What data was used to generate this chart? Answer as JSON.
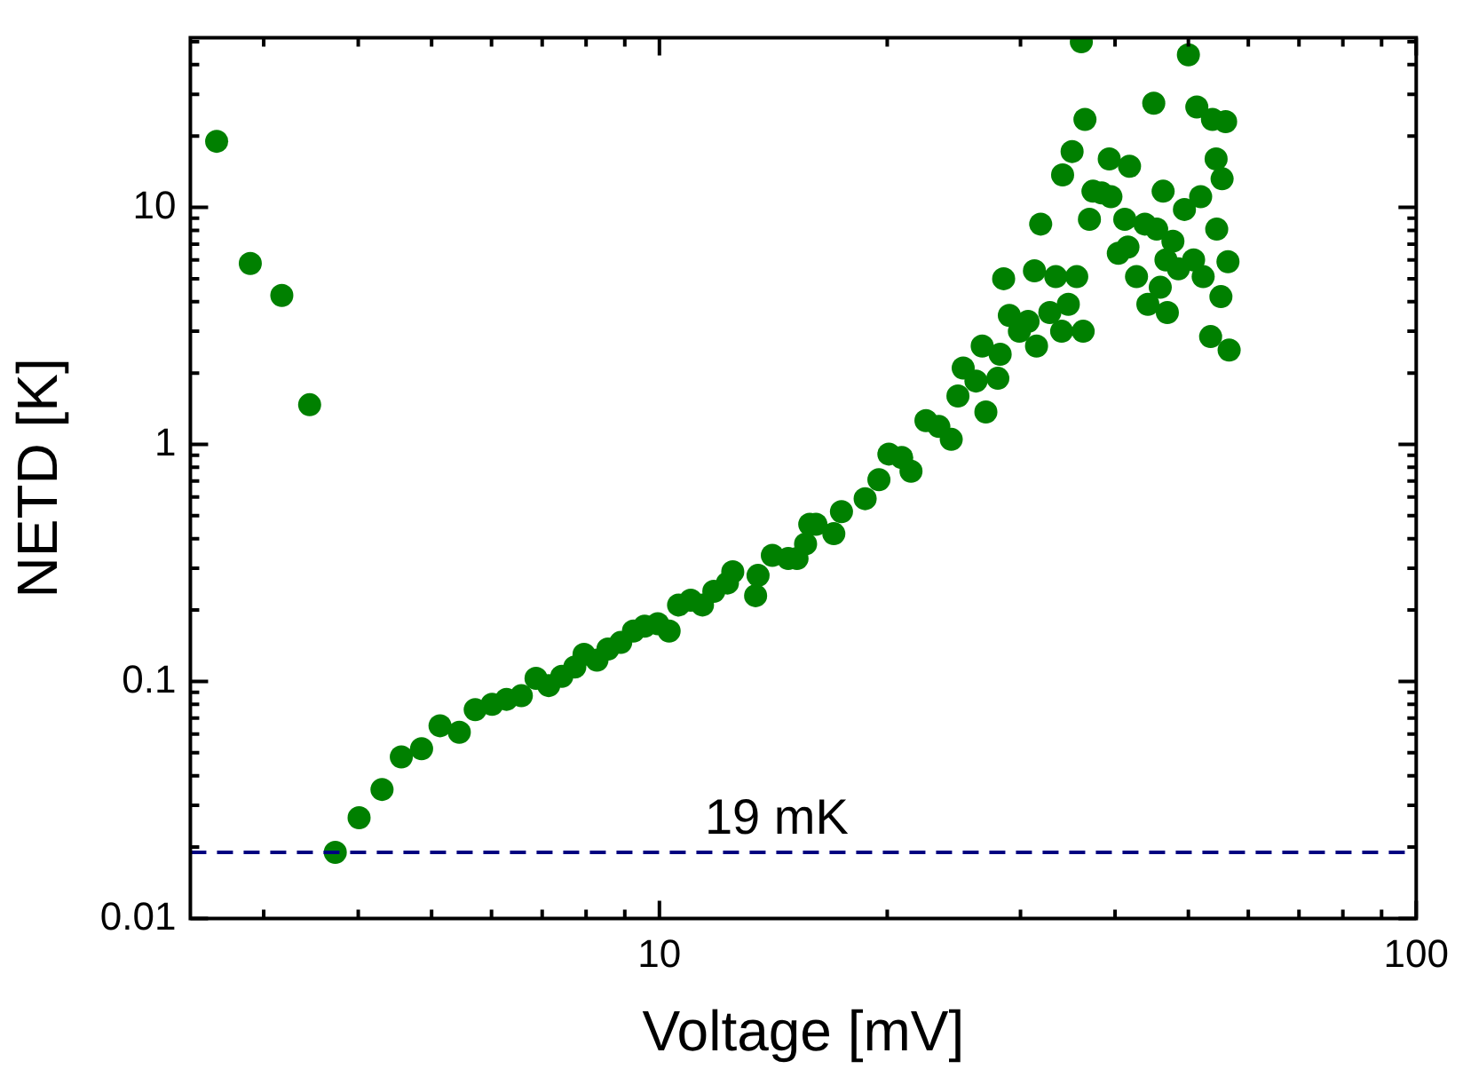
{
  "chart_data": {
    "type": "scatter",
    "xlabel": "Voltage [mV]",
    "ylabel": "NETD [K]",
    "log": "xy",
    "grid": false,
    "legend": false,
    "marker": "circle",
    "xlim": [
      2.4,
      100
    ],
    "ylim": [
      0.01,
      52
    ],
    "xticks": [
      {
        "value": 3,
        "label": null
      },
      {
        "value": 4,
        "label": null
      },
      {
        "value": 5,
        "label": null
      },
      {
        "value": 6,
        "label": null
      },
      {
        "value": 7,
        "label": null
      },
      {
        "value": 8,
        "label": null
      },
      {
        "value": 9,
        "label": null
      },
      10,
      {
        "value": 20,
        "label": null
      },
      {
        "value": 30,
        "label": null
      },
      {
        "value": 40,
        "label": null
      },
      {
        "value": 50,
        "label": null
      },
      {
        "value": 60,
        "label": null
      },
      {
        "value": 70,
        "label": null
      },
      {
        "value": 80,
        "label": null
      },
      {
        "value": 90,
        "label": null
      },
      100
    ],
    "yticks": [
      0.01,
      {
        "value": 0.02,
        "label": null
      },
      {
        "value": 0.03,
        "label": null
      },
      {
        "value": 0.04,
        "label": null
      },
      {
        "value": 0.05,
        "label": null
      },
      {
        "value": 0.06,
        "label": null
      },
      {
        "value": 0.07,
        "label": null
      },
      {
        "value": 0.08,
        "label": null
      },
      {
        "value": 0.09,
        "label": null
      },
      0.1,
      {
        "value": 0.2,
        "label": null
      },
      {
        "value": 0.3,
        "label": null
      },
      {
        "value": 0.4,
        "label": null
      },
      {
        "value": 0.5,
        "label": null
      },
      {
        "value": 0.6,
        "label": null
      },
      {
        "value": 0.7,
        "label": null
      },
      {
        "value": 0.8,
        "label": null
      },
      {
        "value": 0.9,
        "label": null
      },
      1,
      {
        "value": 2,
        "label": null
      },
      {
        "value": 3,
        "label": null
      },
      {
        "value": 4,
        "label": null
      },
      {
        "value": 5,
        "label": null
      },
      {
        "value": 6,
        "label": null
      },
      {
        "value": 7,
        "label": null
      },
      {
        "value": 8,
        "label": null
      },
      {
        "value": 9,
        "label": null
      },
      10,
      {
        "value": 20,
        "label": null
      },
      {
        "value": 30,
        "label": null
      },
      {
        "value": 40,
        "label": null
      },
      {
        "value": 50,
        "label": null
      }
    ],
    "ref_lines": [
      {
        "axis": "y",
        "value": 0.019,
        "label": "19 mK",
        "color": "#000080",
        "line_style": "dashed"
      }
    ],
    "series": [
      {
        "color": "#008000",
        "x": [
          2.6,
          2.88,
          3.17,
          3.45,
          3.73,
          4.01,
          4.3,
          4.56,
          4.85,
          5.13,
          5.44,
          5.71,
          6.01,
          6.28,
          6.57,
          6.87,
          7.14,
          7.43,
          7.73,
          7.95,
          8.27,
          8.55,
          8.89,
          9.24,
          9.56,
          9.95,
          10.3,
          10.6,
          11.0,
          11.4,
          11.8,
          12.3,
          12.5,
          13.4,
          13.5,
          14.1,
          14.8,
          15.2,
          15.6,
          15.8,
          16.1,
          17.0,
          17.4,
          18.7,
          19.5,
          20.1,
          20.9,
          21.5,
          22.5,
          23.4,
          24.3,
          24.8,
          25.2,
          26.2,
          26.7,
          27.0,
          28.0,
          28.2,
          28.5,
          29.0,
          29.9,
          30.7,
          31.3,
          31.5,
          31.9,
          32.8,
          33.4,
          34.0,
          34.1,
          34.7,
          35.1,
          35.6,
          36.1,
          36.3,
          36.5,
          37.0,
          37.4,
          38.4,
          39.3,
          39.5,
          40.4,
          41.2,
          41.6,
          41.8,
          42.7,
          43.8,
          44.2,
          45.0,
          45.4,
          45.9,
          46.3,
          46.7,
          46.9,
          47.7,
          48.5,
          49.4,
          50.0,
          50.8,
          51.3,
          51.9,
          52.3,
          53.5,
          53.8,
          54.4,
          54.5,
          55.2,
          55.4,
          56.0,
          56.4,
          56.6
        ],
        "values": [
          19,
          5.8,
          4.25,
          1.47,
          0.019,
          0.0266,
          0.035,
          0.048,
          0.052,
          0.065,
          0.061,
          0.076,
          0.08,
          0.084,
          0.087,
          0.103,
          0.096,
          0.105,
          0.115,
          0.13,
          0.123,
          0.137,
          0.146,
          0.163,
          0.171,
          0.175,
          0.163,
          0.21,
          0.22,
          0.21,
          0.24,
          0.26,
          0.29,
          0.23,
          0.28,
          0.34,
          0.33,
          0.33,
          0.38,
          0.46,
          0.46,
          0.42,
          0.52,
          0.59,
          0.71,
          0.91,
          0.88,
          0.77,
          1.26,
          1.19,
          1.05,
          1.6,
          2.1,
          1.85,
          2.6,
          1.37,
          1.9,
          2.4,
          5.0,
          3.5,
          3.0,
          3.3,
          5.4,
          2.6,
          8.5,
          3.6,
          5.1,
          3.0,
          13.7,
          3.9,
          17.2,
          5.1,
          50,
          3.0,
          23.5,
          8.9,
          11.7,
          11.5,
          16,
          11.1,
          6.4,
          8.9,
          6.8,
          14.9,
          5.1,
          8.5,
          3.9,
          27.5,
          8.1,
          4.6,
          11.7,
          6.0,
          3.6,
          7.2,
          5.5,
          9.8,
          44,
          6.0,
          26.5,
          11.1,
          5.1,
          2.85,
          23.5,
          16,
          8.1,
          4.2,
          13.2,
          23,
          5.9,
          2.5
        ]
      }
    ]
  }
}
